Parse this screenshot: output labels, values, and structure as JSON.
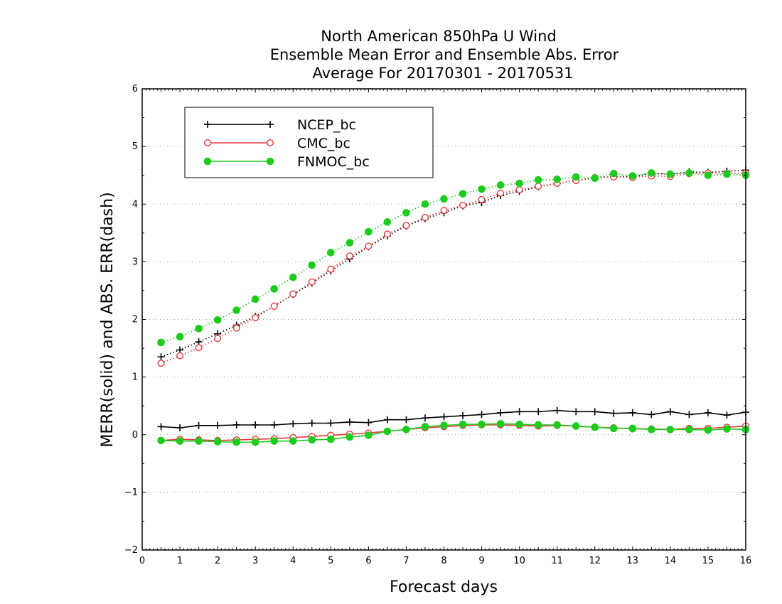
{
  "chart_data": {
    "type": "line",
    "title": [
      "North American 850hPa U Wind",
      "Ensemble Mean Error and Ensemble Abs. Error",
      "Average For 20170301 - 20170531"
    ],
    "xlabel": "Forecast days",
    "ylabel": "MERR(solid) and ABS. ERR(dash)",
    "xlim": [
      0,
      16
    ],
    "ylim": [
      -2,
      6
    ],
    "xticks": [
      "0",
      "1",
      "2",
      "3",
      "4",
      "5",
      "6",
      "7",
      "8",
      "9",
      "10",
      "11",
      "12",
      "13",
      "14",
      "15",
      "16"
    ],
    "yticks": [
      "−2",
      "−1",
      "0",
      "1",
      "2",
      "3",
      "4",
      "5",
      "6"
    ],
    "grid": "horizontal dotted",
    "legend_position": "top-left",
    "x": [
      0.5,
      1,
      1.5,
      2,
      2.5,
      3,
      3.5,
      4,
      4.5,
      5,
      5.5,
      6,
      6.5,
      7,
      7.5,
      8,
      8.5,
      9,
      9.5,
      10,
      10.5,
      11,
      11.5,
      12,
      12.5,
      13,
      13.5,
      14,
      14.5,
      15,
      15.5,
      16
    ],
    "series": [
      {
        "name": "NCEP_bc",
        "color": "#000000",
        "marker": "plus",
        "abs_err": [
          1.35,
          1.47,
          1.61,
          1.75,
          1.9,
          2.05,
          2.23,
          2.43,
          2.63,
          2.84,
          3.05,
          3.26,
          3.45,
          3.62,
          3.75,
          3.85,
          3.97,
          4.03,
          4.15,
          4.22,
          4.3,
          4.36,
          4.41,
          4.45,
          4.48,
          4.48,
          4.53,
          4.52,
          4.56,
          4.55,
          4.57,
          4.59
        ],
        "mean_err": [
          0.14,
          0.12,
          0.16,
          0.16,
          0.17,
          0.17,
          0.17,
          0.19,
          0.2,
          0.2,
          0.22,
          0.21,
          0.26,
          0.26,
          0.29,
          0.31,
          0.33,
          0.35,
          0.38,
          0.4,
          0.4,
          0.42,
          0.4,
          0.4,
          0.37,
          0.38,
          0.35,
          0.4,
          0.35,
          0.38,
          0.34,
          0.39
        ]
      },
      {
        "name": "CMC_bc",
        "color": "#e8393f",
        "marker": "open-circle",
        "abs_err": [
          1.24,
          1.37,
          1.51,
          1.67,
          1.85,
          2.03,
          2.23,
          2.44,
          2.65,
          2.87,
          3.1,
          3.27,
          3.48,
          3.63,
          3.77,
          3.89,
          3.98,
          4.08,
          4.19,
          4.25,
          4.31,
          4.36,
          4.41,
          4.46,
          4.47,
          4.46,
          4.49,
          4.48,
          4.53,
          4.54,
          4.53,
          4.54
        ],
        "mean_err": [
          -0.1,
          -0.08,
          -0.09,
          -0.1,
          -0.09,
          -0.08,
          -0.07,
          -0.05,
          -0.03,
          -0.01,
          0.01,
          0.03,
          0.06,
          0.09,
          0.12,
          0.14,
          0.16,
          0.17,
          0.17,
          0.16,
          0.15,
          0.16,
          0.15,
          0.13,
          0.12,
          0.1,
          0.1,
          0.09,
          0.11,
          0.11,
          0.13,
          0.15
        ]
      },
      {
        "name": "FNMOC_bc",
        "color": "#1ccc1c",
        "marker": "filled-circle",
        "abs_err": [
          1.6,
          1.7,
          1.84,
          1.99,
          2.16,
          2.35,
          2.53,
          2.73,
          2.94,
          3.16,
          3.33,
          3.52,
          3.69,
          3.85,
          4.0,
          4.09,
          4.18,
          4.26,
          4.33,
          4.36,
          4.42,
          4.43,
          4.47,
          4.45,
          4.53,
          4.49,
          4.54,
          4.52,
          4.54,
          4.5,
          4.52,
          4.5
        ],
        "mean_err": [
          -0.1,
          -0.11,
          -0.11,
          -0.12,
          -0.13,
          -0.13,
          -0.11,
          -0.11,
          -0.09,
          -0.08,
          -0.04,
          -0.01,
          0.06,
          0.09,
          0.14,
          0.16,
          0.18,
          0.18,
          0.19,
          0.18,
          0.17,
          0.17,
          0.15,
          0.13,
          0.11,
          0.11,
          0.09,
          0.09,
          0.09,
          0.08,
          0.1,
          0.09
        ]
      }
    ]
  }
}
